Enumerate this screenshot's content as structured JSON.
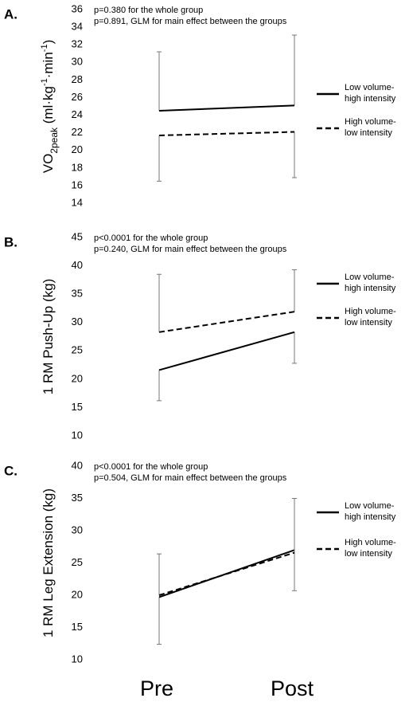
{
  "chart_data": [
    {
      "type": "line",
      "panel": "A.",
      "annotations": [
        "p=0.380 for the whole group",
        "p=0.891, GLM for main effect between the groups"
      ],
      "ylabel": [
        "VO",
        "2peak",
        " (ml·kg",
        "-1",
        "·min",
        "-1",
        ")"
      ],
      "ylabel_format": [
        "normal",
        "sub",
        "normal",
        "sup",
        "normal",
        "sup",
        "normal"
      ],
      "ylim": [
        14,
        36
      ],
      "yticks": [
        14,
        16,
        18,
        20,
        22,
        24,
        26,
        28,
        30,
        32,
        34,
        36
      ],
      "series": [
        {
          "name": "Low volume-high intensity",
          "color": "#000000",
          "dash": "solid",
          "values": [
            24.5,
            25.1
          ],
          "errors": [
            6.7,
            8.0
          ],
          "error_direction": "up"
        },
        {
          "name": "High volume-low intensity",
          "color": "#000000",
          "dash": "dashed",
          "values": [
            21.7,
            22.1
          ],
          "errors": [
            5.2,
            5.2
          ],
          "error_direction": "down"
        }
      ]
    },
    {
      "type": "line",
      "panel": "B.",
      "annotations": [
        "p<0.0001 for the whole group",
        "p=0.240, GLM for main effect between the groups"
      ],
      "ylabel": [
        "1 RM Push-Up (kg)"
      ],
      "ylabel_format": [
        "normal"
      ],
      "ylim": [
        10,
        45
      ],
      "yticks": [
        10,
        15,
        20,
        25,
        30,
        35,
        40,
        45
      ],
      "series": [
        {
          "name": "Low volume-high intensity",
          "color": "#000000",
          "dash": "solid",
          "values": [
            21.6,
            28.3
          ],
          "errors": [
            5.4,
            5.5
          ],
          "error_direction": "down"
        },
        {
          "name": "High volume-low intensity",
          "color": "#000000",
          "dash": "dashed",
          "values": [
            28.3,
            31.9
          ],
          "errors": [
            10.2,
            7.4
          ],
          "error_direction": "up"
        }
      ]
    },
    {
      "type": "line",
      "panel": "C.",
      "annotations": [
        "p<0.0001 for the whole group",
        "p=0.504, GLM for main effect between the groups"
      ],
      "ylabel": [
        "1 RM Leg Extension (kg)"
      ],
      "ylabel_format": [
        "normal"
      ],
      "categories": [
        "Pre",
        "Post"
      ],
      "ylim": [
        10,
        40
      ],
      "yticks": [
        10,
        15,
        20,
        25,
        30,
        35,
        40
      ],
      "series": [
        {
          "name": "Low volume-high intensity",
          "color": "#000000",
          "dash": "solid",
          "values": [
            19.7,
            27.0
          ],
          "errors": [
            7.3,
            6.3
          ],
          "error_direction": "down"
        },
        {
          "name": "High volume-low intensity",
          "color": "#000000",
          "dash": "dashed",
          "values": [
            20.0,
            26.6
          ],
          "errors": [
            6.4,
            8.4
          ],
          "error_direction": "up"
        }
      ]
    }
  ]
}
